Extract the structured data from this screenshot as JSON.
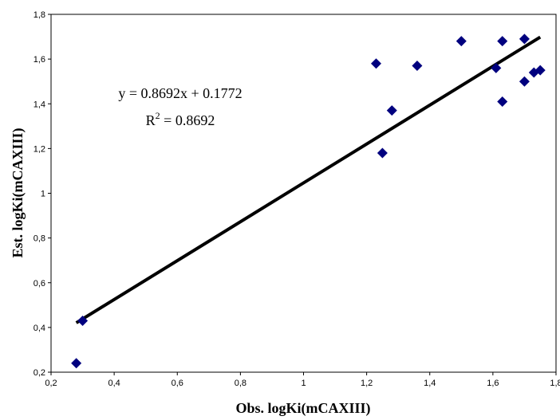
{
  "chart_data": {
    "type": "scatter",
    "title": "",
    "xlabel": "Obs. logKi(mCAXIII)",
    "ylabel": "Est. logKi(mCAXIII)",
    "xlim": [
      0.2,
      1.8
    ],
    "ylim": [
      0.2,
      1.8
    ],
    "xticks": [
      "0,2",
      "0,4",
      "0,6",
      "0,8",
      "1",
      "1,2",
      "1,4",
      "1,6",
      "1,8"
    ],
    "yticks": [
      "0,2",
      "0,4",
      "0,6",
      "0,8",
      "1",
      "1,2",
      "1,4",
      "1,6",
      "1,8"
    ],
    "grid": false,
    "marker_color": "#00007f",
    "line_color": "#000000",
    "series": [
      {
        "values": [
          {
            "x": 0.28,
            "y": 0.24
          },
          {
            "x": 0.3,
            "y": 0.43
          },
          {
            "x": 1.23,
            "y": 1.58
          },
          {
            "x": 1.25,
            "y": 1.18
          },
          {
            "x": 1.28,
            "y": 1.37
          },
          {
            "x": 1.36,
            "y": 1.57
          },
          {
            "x": 1.5,
            "y": 1.68
          },
          {
            "x": 1.61,
            "y": 1.56
          },
          {
            "x": 1.63,
            "y": 1.68
          },
          {
            "x": 1.63,
            "y": 1.41
          },
          {
            "x": 1.7,
            "y": 1.69
          },
          {
            "x": 1.7,
            "y": 1.5
          },
          {
            "x": 1.73,
            "y": 1.54
          },
          {
            "x": 1.75,
            "y": 1.55
          }
        ]
      }
    ],
    "trendline": {
      "slope": 0.8692,
      "intercept": 0.1772,
      "x_range": [
        0.28,
        1.75
      ],
      "equation": "y = 0.8692x + 0.1772",
      "r2_label": "R",
      "r2_sup": "2",
      "r2_value": " = 0.8692"
    }
  }
}
